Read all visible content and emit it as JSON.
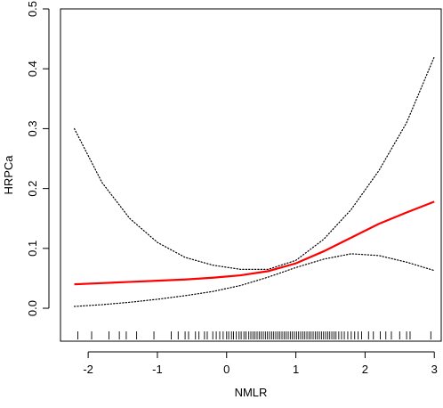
{
  "chart_data": {
    "type": "line",
    "title": "",
    "xlabel": "NMLR",
    "ylabel": "HRPCa",
    "xlim": [
      -2.4,
      3.1
    ],
    "ylim": [
      -0.055,
      0.5
    ],
    "x_ticks": [
      -2,
      -1,
      0,
      1,
      2,
      3
    ],
    "y_ticks": [
      0.0,
      0.1,
      0.2,
      0.3,
      0.4,
      0.5
    ],
    "x_tick_labels": [
      "-2",
      "-1",
      "0",
      "1",
      "2",
      "3"
    ],
    "y_tick_labels": [
      "0.0",
      "0.1",
      "0.2",
      "0.3",
      "0.4",
      "0.5"
    ],
    "grid": false,
    "legend": "none",
    "series": [
      {
        "role": "estimate",
        "color": "#ff0000",
        "style": "solid",
        "x": [
          -2.2,
          -1.8,
          -1.4,
          -1.0,
          -0.6,
          -0.2,
          0.2,
          0.6,
          1.0,
          1.4,
          1.8,
          2.2,
          2.6,
          3.0
        ],
        "y": [
          0.04,
          0.042,
          0.044,
          0.046,
          0.048,
          0.051,
          0.055,
          0.062,
          0.075,
          0.095,
          0.118,
          0.141,
          0.16,
          0.178
        ]
      },
      {
        "role": "upper_ci",
        "color": "#000000",
        "style": "dotted",
        "x": [
          -2.2,
          -1.8,
          -1.4,
          -1.0,
          -0.6,
          -0.2,
          0.2,
          0.6,
          1.0,
          1.4,
          1.8,
          2.2,
          2.6,
          3.0
        ],
        "y": [
          0.3,
          0.21,
          0.15,
          0.11,
          0.085,
          0.072,
          0.065,
          0.065,
          0.08,
          0.115,
          0.165,
          0.23,
          0.31,
          0.42
        ]
      },
      {
        "role": "lower_ci",
        "color": "#000000",
        "style": "dotted",
        "x": [
          -2.2,
          -1.8,
          -1.4,
          -1.0,
          -0.6,
          -0.2,
          0.2,
          0.6,
          1.0,
          1.4,
          1.8,
          2.2,
          2.6,
          3.0
        ],
        "y": [
          0.003,
          0.006,
          0.01,
          0.015,
          0.021,
          0.028,
          0.038,
          0.052,
          0.068,
          0.082,
          0.091,
          0.088,
          0.077,
          0.063
        ]
      }
    ],
    "rug": [
      -2.15,
      -1.95,
      -1.7,
      -1.55,
      -1.45,
      -1.3,
      -1.05,
      -0.8,
      -0.7,
      -0.6,
      -0.55,
      -0.45,
      -0.4,
      -0.32,
      -0.28,
      -0.2,
      -0.15,
      -0.1,
      -0.05,
      0.0,
      0.03,
      0.07,
      0.1,
      0.14,
      0.18,
      0.21,
      0.25,
      0.28,
      0.32,
      0.35,
      0.38,
      0.41,
      0.44,
      0.47,
      0.5,
      0.53,
      0.56,
      0.59,
      0.62,
      0.65,
      0.68,
      0.71,
      0.74,
      0.77,
      0.8,
      0.83,
      0.86,
      0.89,
      0.92,
      0.95,
      0.98,
      1.01,
      1.04,
      1.07,
      1.1,
      1.13,
      1.16,
      1.19,
      1.22,
      1.25,
      1.28,
      1.31,
      1.34,
      1.37,
      1.4,
      1.43,
      1.46,
      1.49,
      1.52,
      1.55,
      1.58,
      1.62,
      1.66,
      1.7,
      1.75,
      1.8,
      1.85,
      1.9,
      1.95,
      2.05,
      2.12,
      2.22,
      2.3,
      2.38,
      2.5,
      2.6,
      2.65,
      2.95
    ]
  }
}
